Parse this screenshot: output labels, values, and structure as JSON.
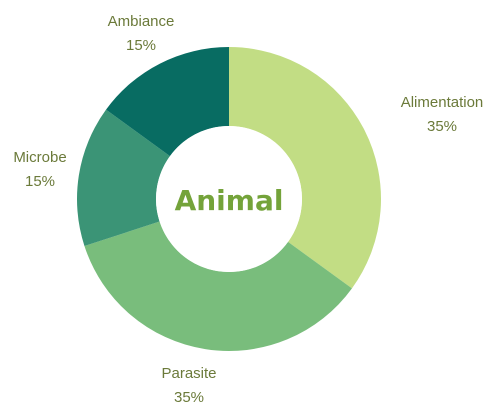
{
  "chart_data": {
    "type": "pie",
    "title": "Animal",
    "categories": [
      "Alimentation",
      "Parasite",
      "Microbe",
      "Ambiance"
    ],
    "values": [
      35,
      35,
      15,
      15
    ],
    "value_labels": [
      "35%",
      "35%",
      "15%",
      "15%"
    ],
    "colors": [
      "#c2dd84",
      "#79bd7c",
      "#3b9476",
      "#086c62"
    ],
    "label_color": "#6b7a3a",
    "title_color": "#74a33a",
    "legend": "none"
  }
}
